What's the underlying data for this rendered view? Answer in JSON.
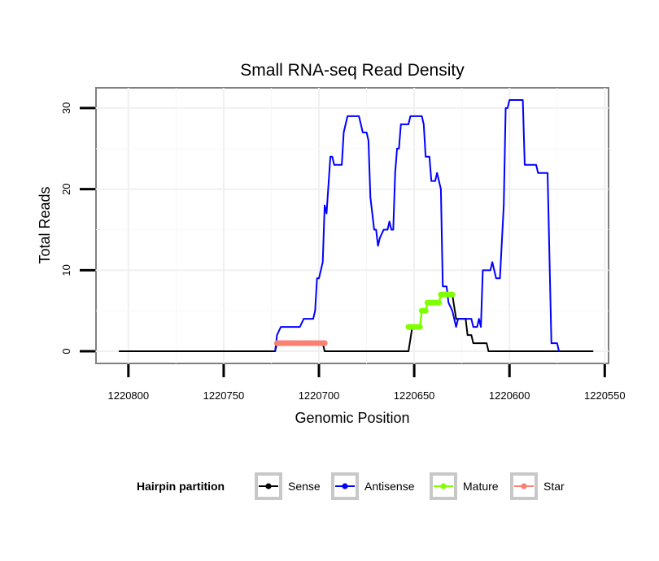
{
  "chart_data": {
    "type": "line",
    "title": "Small RNA-seq Read Density",
    "xlabel": "Genomic Position",
    "ylabel": "Total Reads",
    "xlim": [
      1220817,
      1220548
    ],
    "ylim": [
      -1.5,
      32.5
    ],
    "x_reversed": true,
    "xticks": [
      1220800,
      1220750,
      1220700,
      1220650,
      1220600,
      1220550
    ],
    "xtick_labels": [
      "1220800",
      "1220750",
      "1220700",
      "1220650",
      "1220600",
      "1220550"
    ],
    "yticks": [
      0,
      10,
      20,
      30
    ],
    "ytick_labels": [
      "0",
      "10",
      "20",
      "30"
    ],
    "grid": true,
    "legend_position": "bottom",
    "legend_title": "Hairpin partition",
    "series": [
      {
        "name": "Sense",
        "color": "#000000",
        "points": [
          [
            1220805,
            0
          ],
          [
            1220723,
            0
          ],
          [
            1220722,
            1
          ],
          [
            1220698,
            1
          ],
          [
            1220697,
            0
          ],
          [
            1220653,
            0
          ],
          [
            1220651,
            3
          ],
          [
            1220647,
            3
          ],
          [
            1220646,
            5
          ],
          [
            1220644,
            5
          ],
          [
            1220643,
            6
          ],
          [
            1220637,
            6
          ],
          [
            1220636,
            7
          ],
          [
            1220630,
            7
          ],
          [
            1220628,
            4
          ],
          [
            1220623,
            4
          ],
          [
            1220622,
            2
          ],
          [
            1220620,
            2
          ],
          [
            1220619,
            1
          ],
          [
            1220612,
            1
          ],
          [
            1220611,
            0
          ],
          [
            1220556,
            0
          ]
        ]
      },
      {
        "name": "Antisense",
        "color": "#0000ff",
        "points": [
          [
            1220723,
            0
          ],
          [
            1220722,
            2
          ],
          [
            1220720,
            3
          ],
          [
            1220710,
            3
          ],
          [
            1220708,
            4
          ],
          [
            1220703,
            4
          ],
          [
            1220702,
            5
          ],
          [
            1220701,
            9
          ],
          [
            1220700,
            9
          ],
          [
            1220698,
            11
          ],
          [
            1220697,
            18
          ],
          [
            1220696,
            17
          ],
          [
            1220694,
            24
          ],
          [
            1220693,
            24
          ],
          [
            1220692,
            23
          ],
          [
            1220688,
            23
          ],
          [
            1220687,
            27
          ],
          [
            1220685,
            29
          ],
          [
            1220679,
            29
          ],
          [
            1220677,
            27
          ],
          [
            1220675,
            27
          ],
          [
            1220674,
            26
          ],
          [
            1220673,
            19
          ],
          [
            1220671,
            15
          ],
          [
            1220670,
            15
          ],
          [
            1220669,
            13
          ],
          [
            1220668,
            14
          ],
          [
            1220666,
            15
          ],
          [
            1220664,
            15
          ],
          [
            1220663,
            16
          ],
          [
            1220662,
            15
          ],
          [
            1220661,
            15
          ],
          [
            1220660,
            22
          ],
          [
            1220659,
            25
          ],
          [
            1220658,
            25
          ],
          [
            1220657,
            28
          ],
          [
            1220653,
            28
          ],
          [
            1220652,
            29
          ],
          [
            1220646,
            29
          ],
          [
            1220645,
            28
          ],
          [
            1220644,
            24
          ],
          [
            1220642,
            24
          ],
          [
            1220641,
            21
          ],
          [
            1220639,
            21
          ],
          [
            1220638,
            22
          ],
          [
            1220636,
            20
          ],
          [
            1220635,
            8
          ],
          [
            1220633,
            8
          ],
          [
            1220632,
            6
          ],
          [
            1220630,
            5
          ],
          [
            1220628,
            3
          ],
          [
            1220627,
            4
          ],
          [
            1220620,
            4
          ],
          [
            1220619,
            3
          ],
          [
            1220617,
            3
          ],
          [
            1220616,
            4
          ],
          [
            1220615,
            3
          ],
          [
            1220614,
            10
          ],
          [
            1220610,
            10
          ],
          [
            1220609,
            11
          ],
          [
            1220608,
            10
          ],
          [
            1220607,
            9
          ],
          [
            1220605,
            9
          ],
          [
            1220603,
            18
          ],
          [
            1220602,
            30
          ],
          [
            1220601,
            30
          ],
          [
            1220600,
            31
          ],
          [
            1220593,
            31
          ],
          [
            1220592,
            23
          ],
          [
            1220586,
            23
          ],
          [
            1220585,
            22
          ],
          [
            1220580,
            22
          ],
          [
            1220578,
            1
          ],
          [
            1220575,
            1
          ],
          [
            1220574,
            0
          ]
        ]
      },
      {
        "name": "Mature",
        "color": "#7fff00",
        "points": [
          [
            1220653,
            3
          ],
          [
            1220647,
            3
          ],
          [
            1220646,
            5
          ],
          [
            1220644,
            5
          ],
          [
            1220643,
            6
          ],
          [
            1220637,
            6
          ],
          [
            1220636,
            7
          ],
          [
            1220630,
            7
          ]
        ]
      },
      {
        "name": "Star",
        "color": "#fa8072",
        "points": [
          [
            1220722,
            1
          ],
          [
            1220697,
            1
          ]
        ]
      }
    ]
  }
}
